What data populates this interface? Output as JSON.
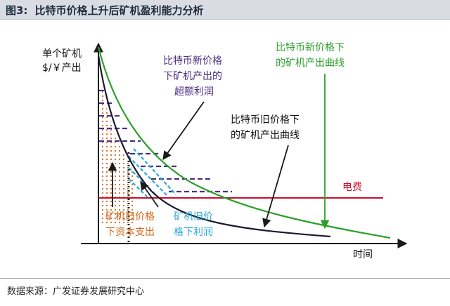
{
  "title": {
    "figure_number": "图3:",
    "text": "比特币价格上升后矿机盈利能力分析"
  },
  "axes": {
    "y_label_line1": "单个矿机",
    "y_label_line2": "$/￥产出",
    "x_label": "时间"
  },
  "annotations": {
    "excess_profit": [
      "比特币新价格",
      "下矿机产出的",
      "超额利润"
    ],
    "new_curve": [
      "比特币新价格下",
      "的矿机产出曲线"
    ],
    "old_curve": [
      "比特币旧价格下",
      "的矿机产出曲线"
    ],
    "electricity": "电费",
    "old_capex": [
      "矿机旧价格",
      "下资本支出"
    ],
    "old_profit": [
      "矿机旧价",
      "格下利润"
    ]
  },
  "source": "数据来源：广发证券发展研究中心",
  "colors": {
    "new_curve": "#2ca02c",
    "old_curve": "#1a1a2e",
    "electricity": "#c8102e",
    "excess_profit": "#4b2e83",
    "old_capex": "#d2691e",
    "old_profit": "#29a8d8",
    "arrow": "#1a1a1a"
  }
}
